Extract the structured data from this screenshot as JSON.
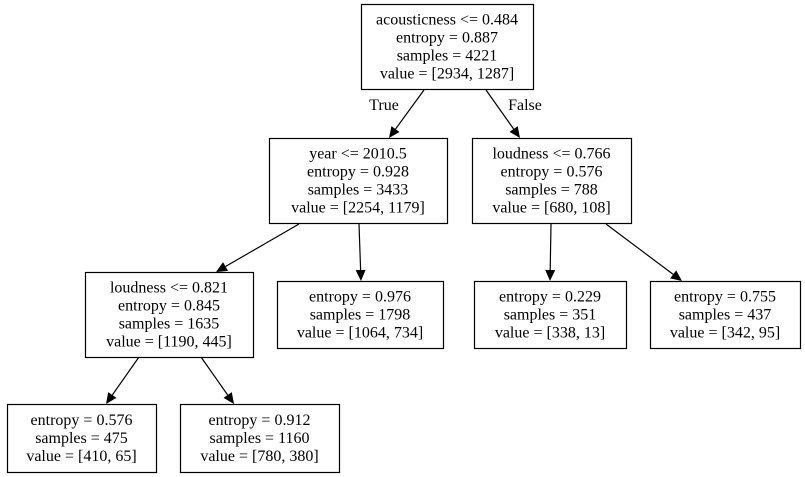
{
  "tree": {
    "nodes": [
      {
        "id": "n0",
        "lines": [
          "acousticness <= 0.484",
          "entropy = 0.887",
          "samples = 4221",
          "value = [2934, 1287]"
        ]
      },
      {
        "id": "n1",
        "lines": [
          "year <= 2010.5",
          "entropy = 0.928",
          "samples = 3433",
          "value = [2254, 1179]"
        ]
      },
      {
        "id": "n2",
        "lines": [
          "loudness <= 0.766",
          "entropy = 0.576",
          "samples = 788",
          "value = [680, 108]"
        ]
      },
      {
        "id": "n3",
        "lines": [
          "loudness <= 0.821",
          "entropy = 0.845",
          "samples = 1635",
          "value = [1190, 445]"
        ]
      },
      {
        "id": "n4",
        "lines": [
          "entropy = 0.976",
          "samples = 1798",
          "value = [1064, 734]"
        ]
      },
      {
        "id": "n5",
        "lines": [
          "entropy = 0.229",
          "samples = 351",
          "value = [338, 13]"
        ]
      },
      {
        "id": "n6",
        "lines": [
          "entropy = 0.755",
          "samples = 437",
          "value = [342, 95]"
        ]
      },
      {
        "id": "n7",
        "lines": [
          "entropy = 0.576",
          "samples = 475",
          "value = [410, 65]"
        ]
      },
      {
        "id": "n8",
        "lines": [
          "entropy = 0.912",
          "samples = 1160",
          "value = [780, 380]"
        ]
      }
    ],
    "edges": [
      {
        "from": "n0",
        "to": "n1",
        "label": "True"
      },
      {
        "from": "n0",
        "to": "n2",
        "label": "False"
      },
      {
        "from": "n1",
        "to": "n3"
      },
      {
        "from": "n1",
        "to": "n4"
      },
      {
        "from": "n2",
        "to": "n5"
      },
      {
        "from": "n2",
        "to": "n6"
      },
      {
        "from": "n3",
        "to": "n7"
      },
      {
        "from": "n3",
        "to": "n8"
      }
    ]
  }
}
